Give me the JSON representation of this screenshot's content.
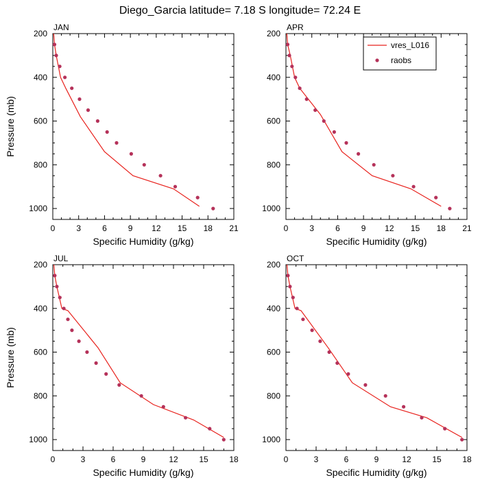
{
  "figure": {
    "title": "Diego_Garcia  latitude= 7.18 S longitude= 72.24 E"
  },
  "colors": {
    "model_line": "#e8211c",
    "obs_marker": "#b5325a",
    "axes": "#000000"
  },
  "legend": {
    "placement": "top-right of APR panel",
    "model_label": "vres_L016",
    "obs_label": "raobs"
  },
  "chart_data": [
    {
      "type": "line",
      "panel": "JAN",
      "xlabel": "Specific Humidity (g/kg)",
      "ylabel": "Pressure (mb)",
      "xlim": [
        0,
        21
      ],
      "ylim": [
        1050,
        200
      ],
      "xticks": [
        0,
        3,
        6,
        9,
        12,
        15,
        18,
        21
      ],
      "yticks": [
        200,
        400,
        600,
        800,
        1000
      ],
      "series": [
        {
          "name": "vres_L016",
          "style": "line",
          "x": [
            0.1,
            0.2,
            0.4,
            0.9,
            1.5,
            3.2,
            6.0,
            9.3,
            14.0,
            17.0
          ],
          "y": [
            200,
            250,
            300,
            400,
            450,
            580,
            740,
            850,
            910,
            990
          ]
        },
        {
          "name": "raobs",
          "style": "markers",
          "x": [
            0.2,
            0.4,
            0.8,
            1.4,
            2.2,
            3.1,
            4.1,
            5.2,
            6.3,
            7.4,
            9.1,
            10.6,
            12.5,
            14.2,
            16.8,
            18.6
          ],
          "y": [
            250,
            300,
            350,
            400,
            450,
            500,
            550,
            600,
            650,
            700,
            750,
            800,
            850,
            900,
            950,
            1000
          ]
        }
      ]
    },
    {
      "type": "line",
      "panel": "APR",
      "xlabel": "Specific Humidity (g/kg)",
      "ylabel": "",
      "xlim": [
        0,
        21
      ],
      "ylim": [
        1050,
        200
      ],
      "xticks": [
        0,
        3,
        6,
        9,
        12,
        15,
        18,
        21
      ],
      "yticks": [
        200,
        400,
        600,
        800,
        1000
      ],
      "series": [
        {
          "name": "vres_L016",
          "style": "line",
          "x": [
            0.1,
            0.2,
            0.5,
            1.0,
            1.6,
            4.0,
            6.5,
            10.0,
            14.5,
            18.0
          ],
          "y": [
            200,
            250,
            300,
            400,
            450,
            570,
            740,
            850,
            910,
            990
          ]
        },
        {
          "name": "raobs",
          "style": "markers",
          "x": [
            0.2,
            0.4,
            0.7,
            1.1,
            1.6,
            2.4,
            3.4,
            4.4,
            5.6,
            7.0,
            8.4,
            10.2,
            12.4,
            14.8,
            17.4,
            19.0
          ],
          "y": [
            250,
            300,
            350,
            400,
            450,
            500,
            550,
            600,
            650,
            700,
            750,
            800,
            850,
            900,
            950,
            1000
          ]
        }
      ]
    },
    {
      "type": "line",
      "panel": "JUL",
      "xlabel": "Specific Humidity (g/kg)",
      "ylabel": "Pressure (mb)",
      "xlim": [
        0,
        18
      ],
      "ylim": [
        1050,
        200
      ],
      "xticks": [
        0,
        3,
        6,
        9,
        12,
        15,
        18
      ],
      "yticks": [
        200,
        400,
        600,
        800,
        1000
      ],
      "series": [
        {
          "name": "vres_L016",
          "style": "line",
          "x": [
            0.1,
            0.2,
            0.4,
            0.9,
            1.5,
            4.5,
            6.7,
            10.0,
            14.0,
            17.0
          ],
          "y": [
            200,
            250,
            300,
            400,
            410,
            580,
            740,
            840,
            910,
            990
          ]
        },
        {
          "name": "raobs",
          "style": "markers",
          "x": [
            0.2,
            0.4,
            0.7,
            1.1,
            1.5,
            1.9,
            2.6,
            3.4,
            4.3,
            5.3,
            6.6,
            8.8,
            11.0,
            13.2,
            15.6,
            17.0
          ],
          "y": [
            250,
            300,
            350,
            400,
            450,
            500,
            550,
            600,
            650,
            700,
            750,
            800,
            850,
            900,
            950,
            1000
          ]
        }
      ]
    },
    {
      "type": "line",
      "panel": "OCT",
      "xlabel": "Specific Humidity (g/kg)",
      "ylabel": "",
      "xlim": [
        0,
        18
      ],
      "ylim": [
        1050,
        200
      ],
      "xticks": [
        0,
        3,
        6,
        9,
        12,
        15,
        18
      ],
      "yticks": [
        200,
        400,
        600,
        800,
        1000
      ],
      "series": [
        {
          "name": "vres_L016",
          "style": "line",
          "x": [
            0.1,
            0.2,
            0.4,
            0.9,
            1.5,
            4.2,
            6.6,
            10.4,
            14.0,
            17.5
          ],
          "y": [
            200,
            250,
            300,
            400,
            410,
            580,
            740,
            850,
            900,
            990
          ]
        },
        {
          "name": "raobs",
          "style": "markers",
          "x": [
            0.2,
            0.4,
            0.7,
            1.1,
            1.7,
            2.6,
            3.4,
            4.3,
            5.1,
            6.2,
            7.9,
            9.9,
            11.7,
            13.5,
            15.8,
            17.5
          ],
          "y": [
            250,
            300,
            350,
            400,
            450,
            500,
            550,
            600,
            650,
            700,
            750,
            800,
            850,
            900,
            950,
            1000
          ]
        }
      ]
    }
  ]
}
